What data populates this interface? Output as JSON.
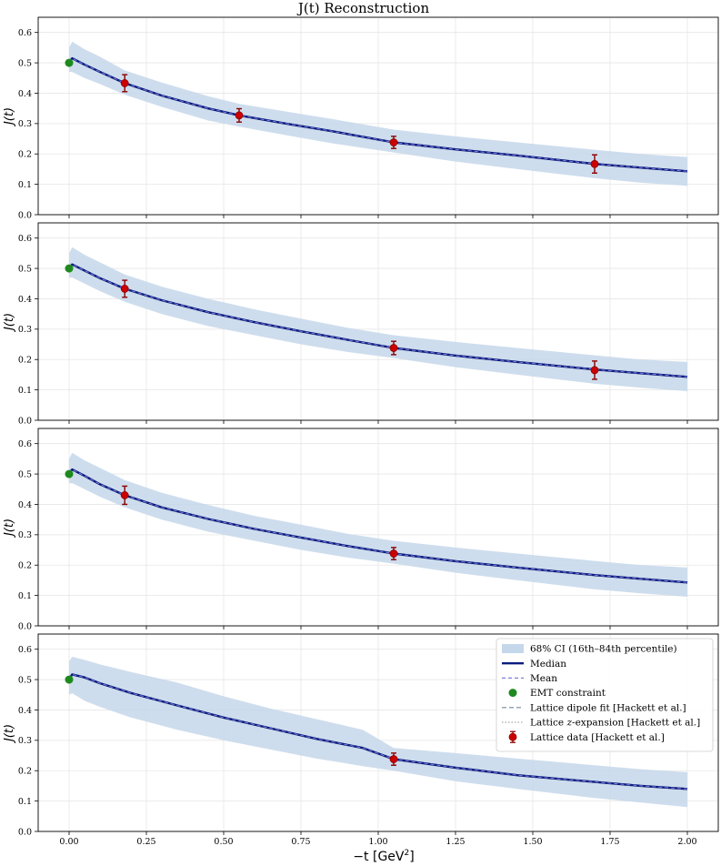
{
  "figure": {
    "title": "J(t) Reconstruction",
    "xlabel_main": "−t [GeV",
    "xlabel_sup": "2",
    "xlabel_end": "]",
    "ylabel": "J(t)"
  },
  "colors": {
    "band": "#c5d7ea",
    "median": "#0b1c7f",
    "mean": "#7f7fd9",
    "emt": "#1e8a1e",
    "lattice_point": "#cc0000",
    "lattice_err": "#8b0000",
    "dipole": "#8c9cb0",
    "zexp": "#a8a8a8",
    "grid": "#e6e6e6"
  },
  "chart_data": [
    {
      "type": "line",
      "panel": 1,
      "xlim": [
        -0.1,
        2.1
      ],
      "ylim": [
        0.0,
        0.65
      ],
      "xticks": [
        0.0,
        0.25,
        0.5,
        0.75,
        1.0,
        1.25,
        1.5,
        1.75,
        2.0
      ],
      "yticks": [
        0.0,
        0.1,
        0.2,
        0.3,
        0.4,
        0.5,
        0.6
      ],
      "grid": true,
      "show_xticklabels": false,
      "median": {
        "name": "Median",
        "x": [
          0,
          0.01,
          0.05,
          0.1,
          0.18,
          0.3,
          0.45,
          0.55,
          0.7,
          0.85,
          1.05,
          1.25,
          1.45,
          1.7,
          1.85,
          2.0
        ],
        "y": [
          0.502,
          0.515,
          0.494,
          0.47,
          0.433,
          0.392,
          0.35,
          0.327,
          0.3,
          0.275,
          0.238,
          0.215,
          0.195,
          0.167,
          0.155,
          0.143
        ]
      },
      "band": {
        "name": "68% CI (16th–84th percentile)",
        "x": [
          0,
          0.01,
          0.05,
          0.1,
          0.18,
          0.3,
          0.45,
          0.55,
          0.7,
          0.85,
          1.05,
          1.25,
          1.45,
          1.7,
          1.85,
          2.0
        ],
        "lower": [
          0.47,
          0.47,
          0.45,
          0.43,
          0.395,
          0.355,
          0.31,
          0.29,
          0.262,
          0.235,
          0.205,
          0.175,
          0.15,
          0.12,
          0.105,
          0.095
        ],
        "upper": [
          0.55,
          0.57,
          0.545,
          0.52,
          0.475,
          0.435,
          0.39,
          0.365,
          0.34,
          0.315,
          0.28,
          0.258,
          0.238,
          0.214,
          0.2,
          0.19
        ]
      },
      "emt": {
        "name": "EMT constraint",
        "x": 0.0,
        "y": 0.5
      },
      "lattice": {
        "name": "Lattice data [Hackett et al.]",
        "x": [
          0.18,
          0.55,
          1.05,
          1.7
        ],
        "y": [
          0.433,
          0.327,
          0.238,
          0.167
        ],
        "err": [
          0.028,
          0.022,
          0.02,
          0.03
        ]
      }
    },
    {
      "type": "line",
      "panel": 2,
      "xlim": [
        -0.1,
        2.1
      ],
      "ylim": [
        0.0,
        0.65
      ],
      "xticks": [
        0.0,
        0.25,
        0.5,
        0.75,
        1.0,
        1.25,
        1.5,
        1.75,
        2.0
      ],
      "yticks": [
        0.0,
        0.1,
        0.2,
        0.3,
        0.4,
        0.5,
        0.6
      ],
      "grid": true,
      "show_xticklabels": false,
      "median": {
        "name": "Median",
        "x": [
          0,
          0.01,
          0.05,
          0.1,
          0.18,
          0.3,
          0.45,
          0.6,
          0.75,
          0.9,
          1.05,
          1.25,
          1.45,
          1.7,
          1.85,
          2.0
        ],
        "y": [
          0.502,
          0.513,
          0.493,
          0.468,
          0.433,
          0.395,
          0.356,
          0.323,
          0.293,
          0.265,
          0.238,
          0.213,
          0.192,
          0.167,
          0.155,
          0.143
        ]
      },
      "band": {
        "name": "68% CI (16th–84th percentile)",
        "x": [
          0,
          0.01,
          0.05,
          0.1,
          0.18,
          0.3,
          0.45,
          0.6,
          0.75,
          0.9,
          1.05,
          1.25,
          1.45,
          1.7,
          1.85,
          2.0
        ],
        "lower": [
          0.47,
          0.47,
          0.45,
          0.425,
          0.39,
          0.35,
          0.31,
          0.28,
          0.25,
          0.225,
          0.205,
          0.175,
          0.15,
          0.12,
          0.107,
          0.096
        ],
        "upper": [
          0.55,
          0.57,
          0.545,
          0.52,
          0.48,
          0.44,
          0.4,
          0.365,
          0.335,
          0.305,
          0.28,
          0.258,
          0.238,
          0.214,
          0.2,
          0.192
        ]
      },
      "emt": {
        "name": "EMT constraint",
        "x": 0.0,
        "y": 0.5
      },
      "lattice": {
        "name": "Lattice data [Hackett et al.]",
        "x": [
          0.18,
          1.05,
          1.7
        ],
        "y": [
          0.433,
          0.238,
          0.165
        ],
        "err": [
          0.028,
          0.022,
          0.03
        ]
      }
    },
    {
      "type": "line",
      "panel": 3,
      "xlim": [
        -0.1,
        2.1
      ],
      "ylim": [
        0.0,
        0.65
      ],
      "xticks": [
        0.0,
        0.25,
        0.5,
        0.75,
        1.0,
        1.25,
        1.5,
        1.75,
        2.0
      ],
      "yticks": [
        0.0,
        0.1,
        0.2,
        0.3,
        0.4,
        0.5,
        0.6
      ],
      "grid": true,
      "show_xticklabels": false,
      "median": {
        "name": "Median",
        "x": [
          0,
          0.01,
          0.05,
          0.1,
          0.18,
          0.3,
          0.45,
          0.6,
          0.75,
          0.9,
          1.05,
          1.25,
          1.45,
          1.7,
          1.85,
          2.0
        ],
        "y": [
          0.502,
          0.515,
          0.494,
          0.466,
          0.43,
          0.39,
          0.352,
          0.319,
          0.291,
          0.263,
          0.238,
          0.213,
          0.192,
          0.167,
          0.155,
          0.143
        ]
      },
      "band": {
        "name": "68% CI (16th–84th percentile)",
        "x": [
          0,
          0.01,
          0.05,
          0.1,
          0.18,
          0.3,
          0.45,
          0.6,
          0.75,
          0.9,
          1.05,
          1.25,
          1.45,
          1.7,
          1.85,
          2.0
        ],
        "lower": [
          0.47,
          0.47,
          0.45,
          0.425,
          0.39,
          0.35,
          0.31,
          0.28,
          0.25,
          0.225,
          0.205,
          0.175,
          0.15,
          0.12,
          0.107,
          0.096
        ],
        "upper": [
          0.55,
          0.57,
          0.545,
          0.52,
          0.48,
          0.438,
          0.398,
          0.362,
          0.333,
          0.303,
          0.28,
          0.258,
          0.238,
          0.214,
          0.2,
          0.192
        ]
      },
      "emt": {
        "name": "EMT constraint",
        "x": 0.0,
        "y": 0.5
      },
      "lattice": {
        "name": "Lattice data [Hackett et al.]",
        "x": [
          0.18,
          1.05
        ],
        "y": [
          0.43,
          0.238
        ],
        "err": [
          0.03,
          0.02
        ]
      }
    },
    {
      "type": "line",
      "panel": 4,
      "xlim": [
        -0.1,
        2.1
      ],
      "ylim": [
        0.0,
        0.65
      ],
      "xticks": [
        0.0,
        0.25,
        0.5,
        0.75,
        1.0,
        1.25,
        1.5,
        1.75,
        2.0
      ],
      "xticklabels": [
        "0.00",
        "0.25",
        "0.50",
        "0.75",
        "1.00",
        "1.25",
        "1.50",
        "1.75",
        "2.00"
      ],
      "yticks": [
        0.0,
        0.1,
        0.2,
        0.3,
        0.4,
        0.5,
        0.6
      ],
      "grid": true,
      "show_xticklabels": true,
      "median": {
        "name": "Median",
        "x": [
          0,
          0.01,
          0.05,
          0.1,
          0.2,
          0.35,
          0.5,
          0.65,
          0.8,
          0.95,
          1.05,
          1.25,
          1.45,
          1.7,
          1.85,
          2.0
        ],
        "y": [
          0.502,
          0.517,
          0.507,
          0.488,
          0.456,
          0.415,
          0.375,
          0.34,
          0.305,
          0.275,
          0.238,
          0.21,
          0.185,
          0.163,
          0.15,
          0.14
        ]
      },
      "band": {
        "name": "68% CI (16th–84th percentile)",
        "x": [
          0,
          0.01,
          0.05,
          0.1,
          0.2,
          0.35,
          0.5,
          0.65,
          0.8,
          0.95,
          1.05,
          1.25,
          1.45,
          1.7,
          1.85,
          2.0
        ],
        "lower": [
          0.45,
          0.455,
          0.43,
          0.41,
          0.375,
          0.335,
          0.3,
          0.27,
          0.24,
          0.215,
          0.2,
          0.165,
          0.14,
          0.11,
          0.095,
          0.08
        ],
        "upper": [
          0.56,
          0.575,
          0.565,
          0.55,
          0.525,
          0.49,
          0.445,
          0.405,
          0.37,
          0.335,
          0.275,
          0.258,
          0.24,
          0.218,
          0.205,
          0.195
        ]
      },
      "emt": {
        "name": "EMT constraint",
        "x": 0.0,
        "y": 0.5
      },
      "lattice": {
        "name": "Lattice data [Hackett et al.]",
        "x": [
          1.05
        ],
        "y": [
          0.238
        ],
        "err": [
          0.02
        ]
      }
    }
  ],
  "legend": {
    "placement": "top-right",
    "items": [
      {
        "kind": "band",
        "label": "68% CI (16th–84th percentile)"
      },
      {
        "kind": "median",
        "label": "Median"
      },
      {
        "kind": "mean",
        "label": "Mean"
      },
      {
        "kind": "emt",
        "label": "EMT constraint"
      },
      {
        "kind": "dipole",
        "label": "Lattice dipole fit [Hackett et al.]"
      },
      {
        "kind": "zexp",
        "label_pre": "Lattice ",
        "label_ital": "z",
        "label_post": "-expansion [Hackett et al.]"
      },
      {
        "kind": "lattice",
        "label": "Lattice data [Hackett et al.]"
      }
    ]
  }
}
